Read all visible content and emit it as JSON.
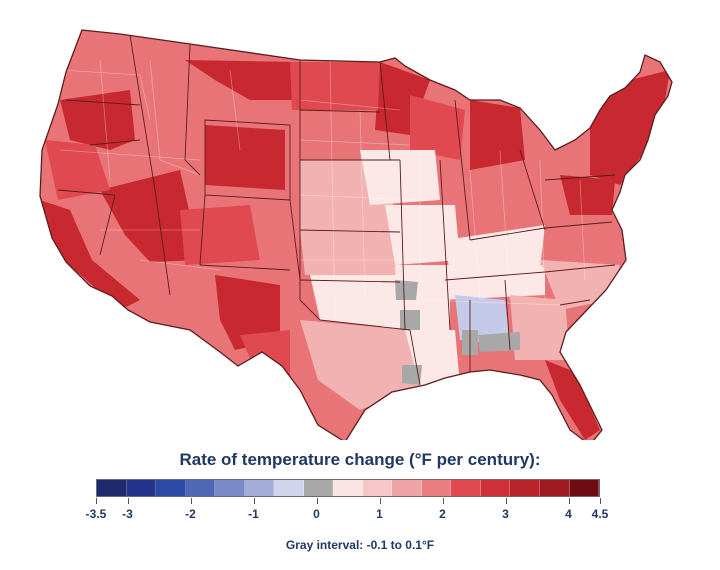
{
  "legend": {
    "title": "Rate of temperature change (°F per century):",
    "gray_note": "Gray interval: -0.1 to 0.1°F",
    "tick_labels": [
      "-3.5",
      "-3",
      "-2",
      "-1",
      "0",
      "1",
      "2",
      "3",
      "4",
      "4.5"
    ],
    "tick_values": [
      -3.5,
      -3,
      -2,
      -1,
      0,
      1,
      2,
      3,
      4,
      4.5
    ],
    "bins": [
      {
        "from": -3.5,
        "to": -3.0,
        "color": "#1d2b6e"
      },
      {
        "from": -3.0,
        "to": -2.5,
        "color": "#23348a"
      },
      {
        "from": -2.5,
        "to": -2.0,
        "color": "#2b4aa6"
      },
      {
        "from": -2.0,
        "to": -1.5,
        "color": "#4f68b6"
      },
      {
        "from": -1.5,
        "to": -1.0,
        "color": "#7b8ac8"
      },
      {
        "from": -1.0,
        "to": -0.5,
        "color": "#a3aedb"
      },
      {
        "from": -0.5,
        "to": -0.1,
        "color": "#cfd3ec"
      },
      {
        "from": -0.1,
        "to": 0.1,
        "color": "#a8a8a8"
      },
      {
        "from": 0.1,
        "to": 0.5,
        "color": "#fbe4e4"
      },
      {
        "from": 0.5,
        "to": 1.0,
        "color": "#f7c6c6"
      },
      {
        "from": 1.0,
        "to": 1.5,
        "color": "#f0a3a5"
      },
      {
        "from": 1.5,
        "to": 2.0,
        "color": "#ea7d80"
      },
      {
        "from": 2.0,
        "to": 2.5,
        "color": "#e0494f"
      },
      {
        "from": 2.5,
        "to": 3.0,
        "color": "#cf2f37"
      },
      {
        "from": 3.0,
        "to": 3.5,
        "color": "#b8232c"
      },
      {
        "from": 3.5,
        "to": 4.0,
        "color": "#9e1a22"
      },
      {
        "from": 4.0,
        "to": 4.5,
        "color": "#6e0d12"
      }
    ]
  },
  "map": {
    "colors": {
      "border": "#5a1e1e",
      "land_base": "#e97477",
      "dark": "#c8282f",
      "medium": "#e0494f",
      "light": "#f3b2b2",
      "pale": "#fde8e8",
      "cool": "#c6cae9",
      "neutral": "#a8a8a8"
    }
  }
}
